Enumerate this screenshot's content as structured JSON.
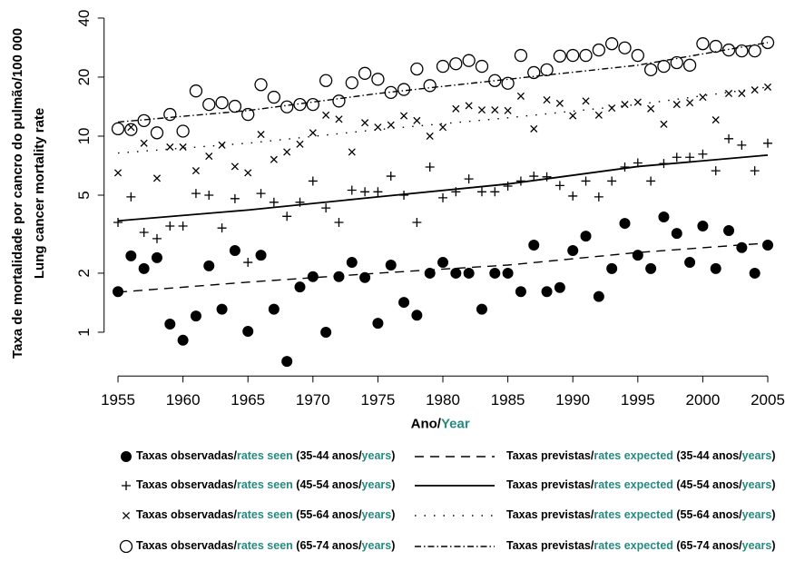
{
  "chart_data": {
    "type": "scatter",
    "log_y": true,
    "accent_color": "#268a80",
    "ylabel": [
      "Taxa de mortalidade por cancro do pulmão/100 000",
      "Lung cancer mortality rate"
    ],
    "xlabel": [
      "Ano/",
      "Year"
    ],
    "xlim": [
      1954,
      2005.6
    ],
    "ylim": [
      0.63,
      47
    ],
    "xticks": [
      1955,
      1960,
      1965,
      1970,
      1975,
      1980,
      1985,
      1990,
      1995,
      2000,
      2005
    ],
    "yticks": [
      1,
      2,
      5,
      10,
      20,
      40
    ],
    "x": [
      1955,
      1956,
      1957,
      1958,
      1959,
      1960,
      1961,
      1962,
      1963,
      1964,
      1965,
      1966,
      1967,
      1968,
      1969,
      1970,
      1971,
      1972,
      1973,
      1974,
      1975,
      1976,
      1977,
      1978,
      1979,
      1980,
      1981,
      1982,
      1983,
      1984,
      1985,
      1986,
      1987,
      1988,
      1989,
      1990,
      1991,
      1992,
      1993,
      1994,
      1995,
      1996,
      1997,
      1998,
      1999,
      2000,
      2001,
      2002,
      2003,
      2004,
      2005
    ],
    "series": [
      {
        "type": "scatter",
        "marker": "dot",
        "color": "#000000",
        "name": [
          "Taxas observadas/",
          "rates seen",
          " (35-44 anos/",
          "years",
          ")"
        ],
        "values": [
          1.61,
          2.45,
          2.11,
          2.4,
          1.1,
          0.91,
          1.21,
          2.18,
          1.31,
          2.61,
          1.01,
          2.47,
          1.31,
          0.71,
          1.7,
          1.92,
          1.0,
          1.92,
          2.27,
          1.9,
          1.11,
          2.2,
          1.42,
          1.22,
          2.0,
          2.27,
          2.0,
          2.0,
          1.31,
          2.0,
          2.0,
          1.61,
          2.78,
          1.61,
          1.69,
          2.61,
          3.09,
          1.52,
          2.11,
          3.59,
          2.47,
          2.11,
          3.87,
          3.19,
          2.27,
          3.48,
          2.11,
          3.3,
          2.7,
          2.0,
          2.78
        ]
      },
      {
        "type": "line",
        "dash": "10,7",
        "color": "#000000",
        "name": [
          "Taxas previstas/",
          "rates expected",
          " (35-44 anos/",
          "years",
          ")"
        ],
        "x": [
          1955,
          1965,
          1975,
          1985,
          1995,
          2005
        ],
        "values": [
          1.6,
          1.8,
          2.0,
          2.2,
          2.55,
          2.85
        ]
      },
      {
        "type": "scatter",
        "marker": "plus",
        "color": "#000000",
        "name": [
          "Taxas observadas/",
          "rates seen",
          " (45-54 anos/",
          "years",
          ")"
        ],
        "values": [
          3.63,
          4.9,
          3.23,
          3.0,
          3.48,
          3.48,
          5.1,
          5.0,
          3.4,
          4.8,
          2.27,
          5.1,
          4.6,
          3.9,
          4.6,
          5.9,
          4.3,
          3.63,
          5.3,
          5.2,
          5.2,
          6.25,
          5.0,
          3.63,
          6.96,
          4.85,
          5.2,
          6.05,
          5.2,
          5.2,
          5.56,
          5.9,
          6.25,
          6.2,
          5.6,
          4.95,
          5.9,
          4.9,
          5.9,
          6.96,
          7.3,
          5.9,
          7.25,
          7.8,
          7.8,
          8.1,
          6.66,
          9.7,
          9.0,
          6.66,
          9.2
        ]
      },
      {
        "type": "line",
        "dash": "none",
        "color": "#000000",
        "name": [
          "Taxas previstas/",
          "rates expected",
          " (45-54 anos/",
          "years",
          ")"
        ],
        "x": [
          1955,
          1965,
          1975,
          1985,
          1995,
          2005
        ],
        "values": [
          3.7,
          4.2,
          4.9,
          5.7,
          7.0,
          8.0
        ]
      },
      {
        "type": "scatter",
        "marker": "cross",
        "color": "#000000",
        "name": [
          "Taxas observadas/",
          "rates seen",
          " (55-64 anos/",
          "years",
          ")"
        ],
        "values": [
          6.5,
          11.1,
          9.2,
          6.1,
          8.8,
          8.8,
          6.66,
          7.9,
          9.0,
          7.0,
          6.5,
          10.2,
          7.6,
          8.3,
          9.1,
          10.4,
          12.8,
          12.2,
          8.3,
          11.7,
          11.1,
          11.4,
          12.7,
          12.0,
          10.0,
          11.1,
          13.8,
          14.3,
          13.6,
          13.6,
          13.5,
          16.0,
          10.9,
          15.3,
          14.7,
          12.7,
          15.1,
          12.8,
          13.9,
          14.5,
          14.9,
          13.8,
          11.5,
          14.5,
          14.8,
          15.8,
          12.1,
          16.5,
          16.5,
          17.2,
          17.8
        ]
      },
      {
        "type": "line",
        "dash": "1.5,9",
        "color": "#000000",
        "name": [
          "Taxas previstas/",
          "rates expected",
          " (55-64 anos/",
          "years",
          ")"
        ],
        "x": [
          1955,
          1965,
          1975,
          1985,
          1995,
          2005
        ],
        "values": [
          8.2,
          9.2,
          10.8,
          12.4,
          14.5,
          17.8
        ]
      },
      {
        "type": "scatter",
        "marker": "circle",
        "color": "#000000",
        "name": [
          "Taxas observadas/",
          "rates seen",
          " (65-74 anos/",
          "years",
          ")"
        ],
        "values": [
          10.9,
          10.8,
          12.0,
          10.4,
          12.9,
          10.6,
          17.0,
          14.5,
          14.8,
          14.2,
          12.9,
          18.3,
          15.8,
          14.1,
          14.5,
          14.5,
          19.2,
          15.1,
          18.7,
          20.9,
          19.5,
          16.7,
          17.3,
          22.0,
          18.1,
          22.7,
          23.4,
          24.3,
          22.7,
          19.2,
          18.6,
          25.8,
          21.1,
          21.8,
          25.6,
          25.8,
          25.8,
          27.5,
          29.6,
          28.2,
          25.8,
          21.8,
          22.7,
          23.7,
          23.0,
          29.6,
          28.7,
          27.5,
          27.2,
          27.2,
          30.0
        ]
      },
      {
        "type": "line",
        "dash": "7,3,1.5,3",
        "color": "#000000",
        "name": [
          "Taxas previstas/",
          "rates expected",
          " (65-74 anos/",
          "years",
          ")"
        ],
        "x": [
          1955,
          1965,
          1975,
          1985,
          1995,
          2005
        ],
        "values": [
          11.8,
          13.5,
          16.5,
          19.5,
          23.0,
          30.0
        ]
      }
    ]
  }
}
